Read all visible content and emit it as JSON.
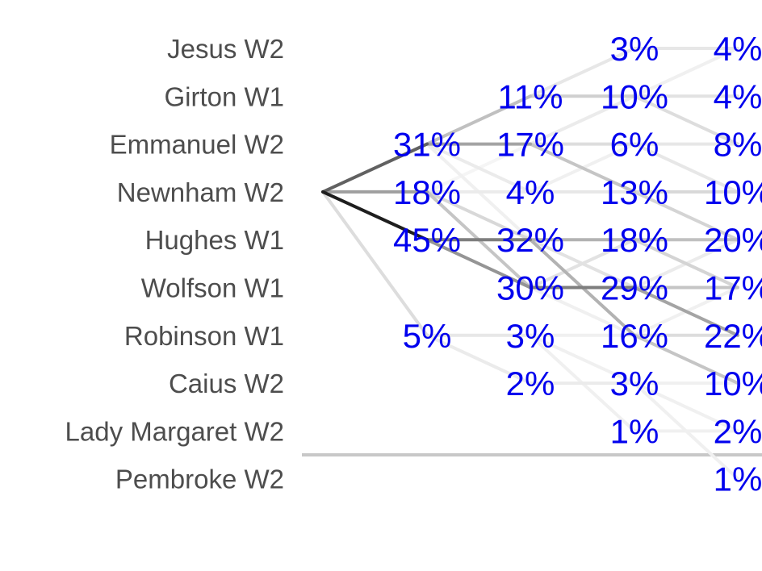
{
  "chart_data": {
    "type": "line",
    "title": "",
    "crews": [
      "Jesus W2",
      "Girton W1",
      "Emmanuel W2",
      "Newnham W2",
      "Hughes W1",
      "Wolfson W1",
      "Robinson W1",
      "Caius W2",
      "Lady Margaret W2",
      "Pembroke W2"
    ],
    "start_crew": "Newnham W2",
    "division_line_after": "Lady Margaret W2",
    "days": [
      {
        "day": 1,
        "probabilities": [
          {
            "crew": "Emmanuel W2",
            "label": "31%",
            "value": 31
          },
          {
            "crew": "Newnham W2",
            "label": "18%",
            "value": 18
          },
          {
            "crew": "Hughes W1",
            "label": "45%",
            "value": 45
          },
          {
            "crew": "Robinson W1",
            "label": "5%",
            "value": 5
          }
        ]
      },
      {
        "day": 2,
        "probabilities": [
          {
            "crew": "Girton W1",
            "label": "11%",
            "value": 11
          },
          {
            "crew": "Emmanuel W2",
            "label": "17%",
            "value": 17
          },
          {
            "crew": "Newnham W2",
            "label": "4%",
            "value": 4
          },
          {
            "crew": "Hughes W1",
            "label": "32%",
            "value": 32
          },
          {
            "crew": "Wolfson W1",
            "label": "30%",
            "value": 30
          },
          {
            "crew": "Robinson W1",
            "label": "3%",
            "value": 3
          },
          {
            "crew": "Caius W2",
            "label": "2%",
            "value": 2
          }
        ]
      },
      {
        "day": 3,
        "probabilities": [
          {
            "crew": "Jesus W2",
            "label": "3%",
            "value": 3
          },
          {
            "crew": "Girton W1",
            "label": "10%",
            "value": 10
          },
          {
            "crew": "Emmanuel W2",
            "label": "6%",
            "value": 6
          },
          {
            "crew": "Newnham W2",
            "label": "13%",
            "value": 13
          },
          {
            "crew": "Hughes W1",
            "label": "18%",
            "value": 18
          },
          {
            "crew": "Wolfson W1",
            "label": "29%",
            "value": 29
          },
          {
            "crew": "Robinson W1",
            "label": "16%",
            "value": 16
          },
          {
            "crew": "Caius W2",
            "label": "3%",
            "value": 3
          },
          {
            "crew": "Lady Margaret W2",
            "label": "1%",
            "value": 1
          }
        ]
      },
      {
        "day": 4,
        "probabilities": [
          {
            "crew": "Jesus W2",
            "label": "4%",
            "value": 4
          },
          {
            "crew": "Girton W1",
            "label": "4%",
            "value": 4
          },
          {
            "crew": "Emmanuel W2",
            "label": "8%",
            "value": 8
          },
          {
            "crew": "Newnham W2",
            "label": "10%",
            "value": 10
          },
          {
            "crew": "Hughes W1",
            "label": "20%",
            "value": 20
          },
          {
            "crew": "Wolfson W1",
            "label": "17%",
            "value": 17
          },
          {
            "crew": "Robinson W1",
            "label": "22%",
            "value": 22
          },
          {
            "crew": "Caius W2",
            "label": "10%",
            "value": 10
          },
          {
            "crew": "Lady Margaret W2",
            "label": "2%",
            "value": 2
          },
          {
            "crew": "Pembroke W2",
            "label": "1%",
            "value": 1
          }
        ]
      }
    ],
    "transitions": [
      [
        {
          "from": "Newnham W2",
          "to": "Emmanuel W2",
          "p": 31
        },
        {
          "from": "Newnham W2",
          "to": "Newnham W2",
          "p": 18
        },
        {
          "from": "Newnham W2",
          "to": "Hughes W1",
          "p": 45
        },
        {
          "from": "Newnham W2",
          "to": "Robinson W1",
          "p": 5
        }
      ],
      [
        {
          "from": "Emmanuel W2",
          "to": "Girton W1",
          "p": 11
        },
        {
          "from": "Emmanuel W2",
          "to": "Emmanuel W2",
          "p": 17
        },
        {
          "from": "Emmanuel W2",
          "to": "Newnham W2",
          "p": 2
        },
        {
          "from": "Emmanuel W2",
          "to": "Hughes W1",
          "p": 1
        },
        {
          "from": "Newnham W2",
          "to": "Emmanuel W2",
          "p": 0
        },
        {
          "from": "Newnham W2",
          "to": "Newnham W2",
          "p": 2
        },
        {
          "from": "Newnham W2",
          "to": "Hughes W1",
          "p": 6
        },
        {
          "from": "Newnham W2",
          "to": "Wolfson W1",
          "p": 10
        },
        {
          "from": "Hughes W1",
          "to": "Hughes W1",
          "p": 25
        },
        {
          "from": "Hughes W1",
          "to": "Wolfson W1",
          "p": 20
        },
        {
          "from": "Robinson W1",
          "to": "Robinson W1",
          "p": 3
        },
        {
          "from": "Robinson W1",
          "to": "Caius W2",
          "p": 2
        }
      ],
      [
        {
          "from": "Girton W1",
          "to": "Jesus W2",
          "p": 3
        },
        {
          "from": "Girton W1",
          "to": "Girton W1",
          "p": 8
        },
        {
          "from": "Emmanuel W2",
          "to": "Girton W1",
          "p": 2
        },
        {
          "from": "Emmanuel W2",
          "to": "Emmanuel W2",
          "p": 5
        },
        {
          "from": "Emmanuel W2",
          "to": "Newnham W2",
          "p": 10
        },
        {
          "from": "Newnham W2",
          "to": "Emmanuel W2",
          "p": 1
        },
        {
          "from": "Newnham W2",
          "to": "Newnham W2",
          "p": 3
        },
        {
          "from": "Hughes W1",
          "to": "Hughes W1",
          "p": 14
        },
        {
          "from": "Hughes W1",
          "to": "Wolfson W1",
          "p": 4
        },
        {
          "from": "Hughes W1",
          "to": "Robinson W1",
          "p": 14
        },
        {
          "from": "Wolfson W1",
          "to": "Hughes W1",
          "p": 4
        },
        {
          "from": "Wolfson W1",
          "to": "Wolfson W1",
          "p": 25
        },
        {
          "from": "Wolfson W1",
          "to": "Robinson W1",
          "p": 1
        },
        {
          "from": "Robinson W1",
          "to": "Robinson W1",
          "p": 1
        },
        {
          "from": "Robinson W1",
          "to": "Caius W2",
          "p": 1
        },
        {
          "from": "Robinson W1",
          "to": "Lady Margaret W2",
          "p": 1
        },
        {
          "from": "Caius W2",
          "to": "Caius W2",
          "p": 2
        }
      ],
      [
        {
          "from": "Jesus W2",
          "to": "Jesus W2",
          "p": 3
        },
        {
          "from": "Girton W1",
          "to": "Jesus W2",
          "p": 1
        },
        {
          "from": "Girton W1",
          "to": "Girton W1",
          "p": 4
        },
        {
          "from": "Girton W1",
          "to": "Emmanuel W2",
          "p": 5
        },
        {
          "from": "Emmanuel W2",
          "to": "Emmanuel W2",
          "p": 3
        },
        {
          "from": "Emmanuel W2",
          "to": "Newnham W2",
          "p": 3
        },
        {
          "from": "Newnham W2",
          "to": "Newnham W2",
          "p": 6
        },
        {
          "from": "Newnham W2",
          "to": "Hughes W1",
          "p": 7
        },
        {
          "from": "Hughes W1",
          "to": "Hughes W1",
          "p": 11
        },
        {
          "from": "Hughes W1",
          "to": "Wolfson W1",
          "p": 7
        },
        {
          "from": "Wolfson W1",
          "to": "Hughes W1",
          "p": 2
        },
        {
          "from": "Wolfson W1",
          "to": "Wolfson W1",
          "p": 10
        },
        {
          "from": "Wolfson W1",
          "to": "Robinson W1",
          "p": 17
        },
        {
          "from": "Robinson W1",
          "to": "Robinson W1",
          "p": 5
        },
        {
          "from": "Robinson W1",
          "to": "Caius W2",
          "p": 10
        },
        {
          "from": "Robinson W1",
          "to": "Wolfson W1",
          "p": 1
        },
        {
          "from": "Caius W2",
          "to": "Lady Margaret W2",
          "p": 1
        },
        {
          "from": "Caius W2",
          "to": "Pembroke W2",
          "p": 1
        },
        {
          "from": "Caius W2",
          "to": "Caius W2",
          "p": 1
        },
        {
          "from": "Lady Margaret W2",
          "to": "Lady Margaret W2",
          "p": 1
        }
      ]
    ],
    "colors": {
      "labels": "#0000ee",
      "crew_text": "#4d4d4d",
      "paths": "#1a1a1a",
      "division_line": "#c8c8c8"
    }
  }
}
